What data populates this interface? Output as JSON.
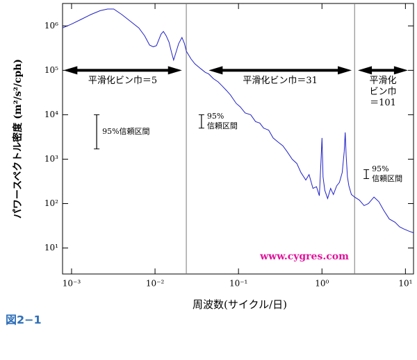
{
  "chart_data": {
    "type": "line",
    "xlabel": "周波数(サイクル/日)",
    "ylabel": "パワースペクトル密度 (m²/s²/cph)",
    "xscale": "log",
    "yscale": "log",
    "xlim": [
      0.00078,
      12.5
    ],
    "ylim": [
      2.6,
      3200000
    ],
    "xticks": [
      {
        "value": 0.001,
        "label": "10⁻³"
      },
      {
        "value": 0.01,
        "label": "10⁻²"
      },
      {
        "value": 0.1,
        "label": "10⁻¹"
      },
      {
        "value": 1,
        "label": "10⁰"
      },
      {
        "value": 10,
        "label": "10¹"
      }
    ],
    "yticks": [
      {
        "value": 10,
        "label": "10¹"
      },
      {
        "value": 100,
        "label": "10²"
      },
      {
        "value": 1000,
        "label": "10³"
      },
      {
        "value": 10000,
        "label": "10⁴"
      },
      {
        "value": 100000,
        "label": "10⁵"
      },
      {
        "value": 1000000,
        "label": "10⁶"
      }
    ],
    "series": [
      {
        "color": "#2020c8",
        "x": [
          0.00078,
          0.001,
          0.0013,
          0.0017,
          0.0022,
          0.0027,
          0.0032,
          0.004,
          0.005,
          0.0064,
          0.0075,
          0.0086,
          0.0095,
          0.0104,
          0.0118,
          0.0126,
          0.0136,
          0.0147,
          0.0158,
          0.0167,
          0.0178,
          0.0192,
          0.021,
          0.0225,
          0.0237,
          0.027,
          0.03,
          0.035,
          0.04,
          0.044,
          0.05,
          0.057,
          0.064,
          0.072,
          0.08,
          0.094,
          0.105,
          0.12,
          0.14,
          0.16,
          0.18,
          0.2,
          0.23,
          0.26,
          0.3,
          0.34,
          0.38,
          0.44,
          0.5,
          0.56,
          0.64,
          0.7,
          0.78,
          0.86,
          0.93,
          0.97,
          1.0,
          1.03,
          1.08,
          1.17,
          1.27,
          1.37,
          1.5,
          1.62,
          1.75,
          1.85,
          1.9,
          1.95,
          2.02,
          2.1,
          2.25,
          2.46,
          2.8,
          3.2,
          3.6,
          4.2,
          4.8,
          5.5,
          6.4,
          7.5,
          8.5,
          9.5,
          11,
          12.5
        ],
        "values": [
          900000,
          1100000,
          1400000,
          1800000,
          2200000,
          2400000,
          2400000,
          1800000,
          1300000,
          900000,
          600000,
          370000,
          340000,
          360000,
          650000,
          750000,
          600000,
          430000,
          250000,
          170000,
          250000,
          400000,
          550000,
          400000,
          270000,
          180000,
          140000,
          110000,
          90000,
          83000,
          65000,
          55000,
          44000,
          35000,
          28000,
          18000,
          15000,
          11000,
          10000,
          7000,
          6500,
          5000,
          4500,
          3000,
          2400,
          2000,
          1500,
          1000,
          800,
          500,
          340,
          450,
          220,
          240,
          150,
          800,
          3000,
          400,
          200,
          130,
          220,
          160,
          250,
          300,
          500,
          1500,
          4000,
          1200,
          400,
          250,
          160,
          140,
          120,
          90,
          100,
          140,
          110,
          70,
          45,
          38,
          30,
          27,
          24,
          22
        ]
      }
    ],
    "dividers": [
      0.0237,
      2.46
    ],
    "bands": [
      {
        "label_lines": [
          "平滑化ビン巾＝5"
        ],
        "x_range": [
          0.0008,
          0.021
        ],
        "y": 100000
      },
      {
        "label_lines": [
          "平滑化ビン巾＝31"
        ],
        "x_range": [
          0.044,
          2.27
        ],
        "y": 100000
      },
      {
        "label_lines": [
          "平滑化",
          "ビン巾",
          "＝101"
        ],
        "x_range": [
          2.7,
          10.7
        ],
        "y": 100000
      }
    ],
    "intervals": [
      {
        "label_lines": [
          "95%信頼区間"
        ],
        "x": 0.002,
        "low": 1700,
        "high": 10000
      },
      {
        "label_lines": [
          "95%",
          "信頼区間"
        ],
        "x": 0.036,
        "low": 5000,
        "high": 10000
      },
      {
        "label_lines": [
          "95%",
          "信頼区間"
        ],
        "x": 3.4,
        "low": 365,
        "high": 580
      }
    ],
    "annotation": "www.cygres.com"
  },
  "caption": "図2−1"
}
